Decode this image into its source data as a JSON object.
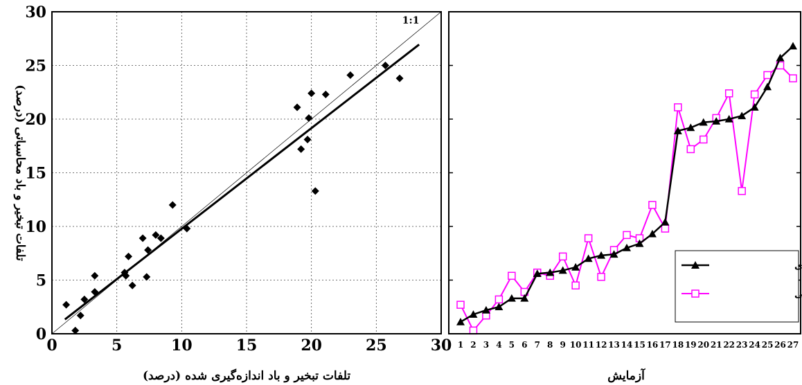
{
  "chart_data": [
    {
      "type": "scatter",
      "xlabel": "تلفات تبخیر و باد اندازه‌گیری شده (درصد)",
      "ylabel": "تلفات تبخیر و باد محاسباتی (درصد)",
      "xlim": [
        0,
        30
      ],
      "ylim": [
        0,
        30
      ],
      "xticks": [
        "0",
        "5",
        "10",
        "15",
        "20",
        "25",
        "30"
      ],
      "yticks": [
        "0",
        "5",
        "10",
        "15",
        "20",
        "25",
        "30"
      ],
      "grid": true,
      "identity_label": "1:1",
      "regression": {
        "slope": 0.938,
        "intercept": 0.4,
        "x_range": [
          1.0,
          28.3
        ]
      },
      "points": [
        {
          "x": 1.1,
          "y": 2.7
        },
        {
          "x": 1.8,
          "y": 0.3
        },
        {
          "x": 2.2,
          "y": 1.7
        },
        {
          "x": 2.5,
          "y": 3.2
        },
        {
          "x": 3.3,
          "y": 5.4
        },
        {
          "x": 3.3,
          "y": 3.9
        },
        {
          "x": 5.6,
          "y": 5.7
        },
        {
          "x": 5.7,
          "y": 5.4
        },
        {
          "x": 5.9,
          "y": 7.2
        },
        {
          "x": 6.2,
          "y": 4.5
        },
        {
          "x": 7.0,
          "y": 8.9
        },
        {
          "x": 7.3,
          "y": 5.3
        },
        {
          "x": 7.4,
          "y": 7.8
        },
        {
          "x": 8.0,
          "y": 9.2
        },
        {
          "x": 8.4,
          "y": 8.9
        },
        {
          "x": 9.3,
          "y": 12.0
        },
        {
          "x": 10.4,
          "y": 9.8
        },
        {
          "x": 18.9,
          "y": 21.1
        },
        {
          "x": 19.2,
          "y": 17.2
        },
        {
          "x": 19.7,
          "y": 18.1
        },
        {
          "x": 19.8,
          "y": 20.1
        },
        {
          "x": 20.0,
          "y": 22.4
        },
        {
          "x": 20.3,
          "y": 13.3
        },
        {
          "x": 21.1,
          "y": 22.3
        },
        {
          "x": 23.0,
          "y": 24.1
        },
        {
          "x": 25.7,
          "y": 25.0
        },
        {
          "x": 26.8,
          "y": 23.8
        }
      ]
    },
    {
      "type": "line",
      "xlabel": "آزمایش",
      "categories": [
        "1",
        "2",
        "3",
        "4",
        "5",
        "6",
        "7",
        "8",
        "9",
        "10",
        "11",
        "12",
        "13",
        "14",
        "15",
        "16",
        "17",
        "18",
        "19",
        "20",
        "21",
        "22",
        "23",
        "24",
        "25",
        "26",
        "27"
      ],
      "ylim": [
        0,
        30
      ],
      "legend_position": "bottom-right",
      "series": [
        {
          "name": "مقادیر اندازه‌گیری",
          "color": "#000000",
          "marker": "filled-triangle",
          "values": [
            1.1,
            1.8,
            2.2,
            2.5,
            3.3,
            3.3,
            5.6,
            5.7,
            5.9,
            6.2,
            7.0,
            7.3,
            7.4,
            8.0,
            8.4,
            9.3,
            10.4,
            18.9,
            19.2,
            19.7,
            19.8,
            20.0,
            20.3,
            21.1,
            23.0,
            25.7,
            26.8
          ]
        },
        {
          "name": "مقادیر محاسباتی",
          "color": "#ff00ff",
          "marker": "hollow-square",
          "values": [
            2.7,
            0.3,
            1.7,
            3.2,
            5.4,
            3.9,
            5.7,
            5.4,
            7.2,
            4.5,
            8.9,
            5.3,
            7.8,
            9.2,
            8.9,
            12.0,
            9.8,
            21.1,
            17.2,
            18.1,
            20.1,
            22.4,
            13.3,
            22.3,
            24.1,
            25.0,
            23.8
          ]
        }
      ]
    }
  ]
}
